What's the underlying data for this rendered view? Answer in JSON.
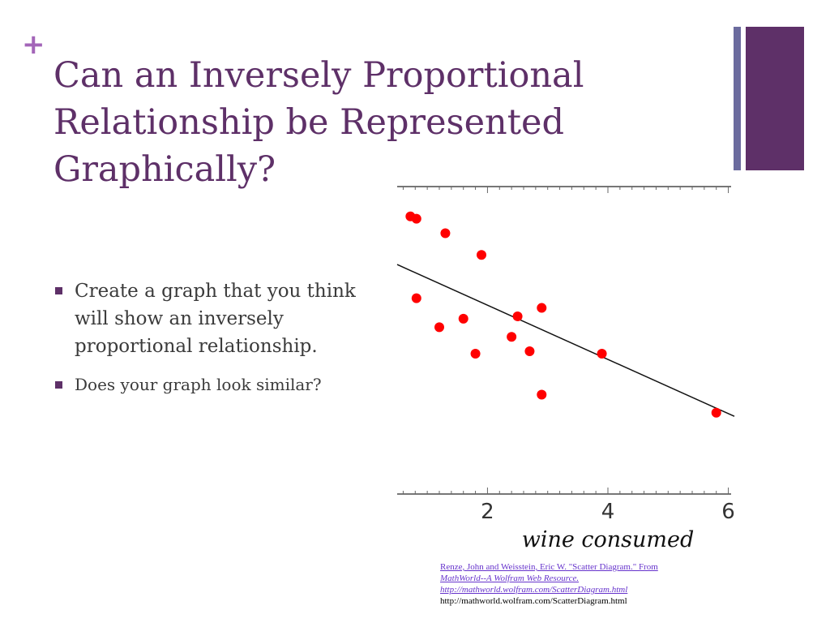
{
  "slide": {
    "plus_symbol": "+",
    "title_lines": [
      "Can an Inversely Proportional",
      "Relationship be Represented",
      "Graphically?"
    ],
    "bullets": [
      "Create a graph that you think will show an inversely proportional relationship.",
      "Does your graph look similar?"
    ],
    "colors": {
      "accent": "#5e3068",
      "plus": "#a365b8",
      "deco_thin": "#6b6b9e",
      "point": "#ff0000"
    }
  },
  "citation": {
    "line1": "Renze, John and Weisstein, Eric W. \"Scatter Diagram.\" From",
    "line2": "MathWorld--A Wolfram Web Resource.",
    "line3": "http://mathworld.wolfram.com/ScatterDiagram.html",
    "line4": "http://mathworld.wolfram.com/ScatterDiagram.html"
  },
  "chart_data": {
    "type": "scatter",
    "xlabel": "wine consumed",
    "ylabel": "",
    "title": "",
    "xlim": [
      0.5,
      6.1
    ],
    "x_ticks": [
      2,
      4,
      6
    ],
    "grid": false,
    "legend": "none",
    "series": [
      {
        "points": [
          [
            0.72,
            9.0
          ],
          [
            0.82,
            8.9
          ],
          [
            1.3,
            8.3
          ],
          [
            1.9,
            7.4
          ],
          [
            0.82,
            5.6
          ],
          [
            2.9,
            5.2
          ],
          [
            1.6,
            4.75
          ],
          [
            2.5,
            4.85
          ],
          [
            1.2,
            4.4
          ],
          [
            2.4,
            4.0
          ],
          [
            1.8,
            3.3
          ],
          [
            2.7,
            3.4
          ],
          [
            3.9,
            3.3
          ],
          [
            2.9,
            1.6
          ],
          [
            5.8,
            0.85
          ]
        ]
      }
    ],
    "trend_line": {
      "x": [
        0.5,
        6.1
      ],
      "y": [
        7.0,
        0.7
      ]
    }
  }
}
